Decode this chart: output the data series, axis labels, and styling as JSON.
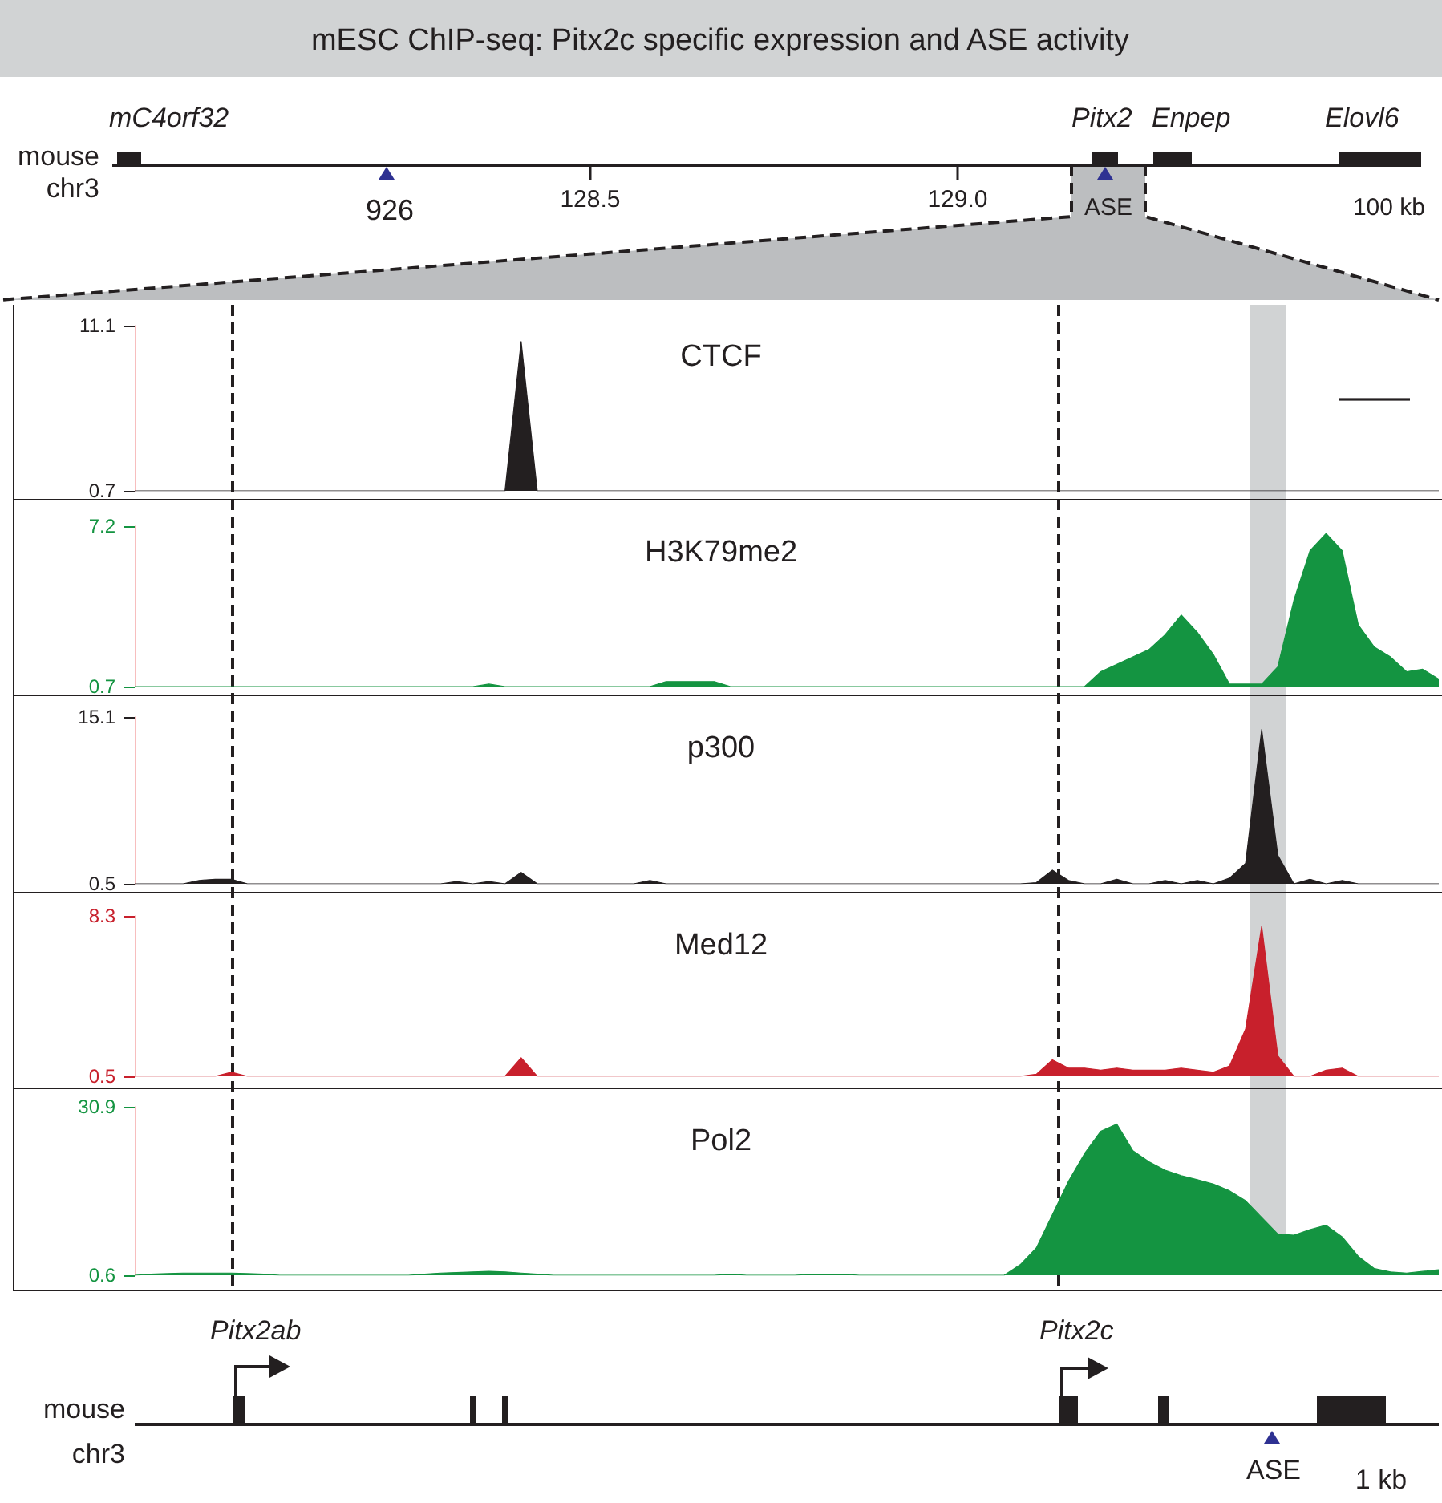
{
  "chart_data": [
    {
      "type": "other",
      "title": "mESC ChIP-seq: Pitx2c specific expression and ASE activity",
      "annotations": [
        "mouse",
        "chr3",
        "mC4orf32",
        "Pitx2",
        "Enpep",
        "Elovl6",
        "926",
        "128.5",
        "129.0",
        "ASE",
        "100 kb"
      ]
    },
    {
      "type": "area",
      "title": "CTCF",
      "color": "#231f20",
      "categories": [
        null,
        null,
        null,
        null,
        null,
        null,
        null,
        null,
        null,
        null,
        null,
        null,
        null,
        null,
        null,
        null,
        null,
        null,
        null,
        null,
        null,
        null,
        null,
        null,
        null,
        null,
        null,
        null,
        null,
        null,
        null,
        null,
        null,
        null,
        null,
        null,
        null,
        null,
        null,
        null,
        null,
        null,
        null,
        null,
        null,
        null,
        null,
        null,
        null,
        null,
        null,
        null,
        null,
        null,
        null,
        null,
        null,
        null,
        null,
        null,
        null,
        null,
        null,
        null,
        null,
        null,
        null,
        null,
        null,
        null,
        null,
        null,
        null,
        null,
        null,
        null,
        null,
        null,
        null,
        null,
        null,
        null
      ],
      "values": [
        0.7,
        0.7,
        0.7,
        0.7,
        0.7,
        0.7,
        0.7,
        0.7,
        0.7,
        0.7,
        0.7,
        0.7,
        0.7,
        0.7,
        0.7,
        0.7,
        0.7,
        0.7,
        0.7,
        0.7,
        0.7,
        0.7,
        0.7,
        0.7,
        10.1,
        0.7,
        0.7,
        0.7,
        0.7,
        0.7,
        0.7,
        0.7,
        0.7,
        0.7,
        0.7,
        0.7,
        0.7,
        0.7,
        0.7,
        0.7,
        0.7,
        0.7,
        0.7,
        0.7,
        0.7,
        0.7,
        0.7,
        0.7,
        0.7,
        0.7,
        0.7,
        0.7,
        0.7,
        0.7,
        0.7,
        0.7,
        0.7,
        0.7,
        0.7,
        0.7,
        0.7,
        0.7,
        0.7,
        0.7,
        0.7,
        0.7,
        0.7,
        0.7,
        0.7,
        0.7,
        0.7,
        0.7,
        0.7,
        0.7,
        0.7,
        0.7,
        0.7,
        0.7,
        0.7,
        0.7,
        0.7,
        0.7
      ],
      "ylim": [
        0.7,
        11.1
      ],
      "yticks": [
        0.7,
        11.1
      ],
      "tick_labels": "y"
    },
    {
      "type": "area",
      "title": "H3K79me2",
      "color": "#149441",
      "categories": [
        null,
        null,
        null,
        null,
        null,
        null,
        null,
        null,
        null,
        null,
        null,
        null,
        null,
        null,
        null,
        null,
        null,
        null,
        null,
        null,
        null,
        null,
        null,
        null,
        null,
        null,
        null,
        null,
        null,
        null,
        null,
        null,
        null,
        null,
        null,
        null,
        null,
        null,
        null,
        null,
        null,
        null,
        null,
        null,
        null,
        null,
        null,
        null,
        null,
        null,
        null,
        null,
        null,
        null,
        null,
        null,
        null,
        null,
        null,
        null,
        null,
        null,
        null,
        null,
        null,
        null,
        null,
        null,
        null,
        null,
        null,
        null,
        null,
        null,
        null,
        null,
        null,
        null,
        null,
        null,
        null,
        null
      ],
      "values": [
        0.7,
        0.7,
        0.7,
        0.7,
        0.7,
        0.7,
        0.7,
        0.7,
        0.7,
        0.7,
        0.7,
        0.7,
        0.7,
        0.7,
        0.7,
        0.7,
        0.7,
        0.7,
        0.7,
        0.7,
        0.7,
        0.7,
        0.8,
        0.7,
        0.7,
        0.7,
        0.7,
        0.7,
        0.7,
        0.7,
        0.7,
        0.7,
        0.7,
        0.9,
        0.9,
        0.9,
        0.9,
        0.7,
        0.7,
        0.7,
        0.7,
        0.7,
        0.7,
        0.7,
        0.7,
        0.7,
        0.7,
        0.7,
        0.7,
        0.7,
        0.7,
        0.7,
        0.7,
        0.7,
        0.7,
        0.7,
        0.7,
        0.7,
        0.7,
        0.7,
        1.3,
        1.6,
        1.9,
        2.2,
        2.8,
        3.6,
        2.9,
        2.0,
        0.8,
        0.8,
        0.8,
        1.5,
        4.2,
        6.2,
        6.9,
        6.2,
        3.2,
        2.3,
        1.9,
        1.3,
        1.4,
        1.0
      ],
      "ylim": [
        0.7,
        7.2
      ],
      "yticks": [
        0.7,
        7.2
      ],
      "tick_labels": "y"
    },
    {
      "type": "area",
      "title": "p300",
      "color": "#231f20",
      "categories": [
        null,
        null,
        null,
        null,
        null,
        null,
        null,
        null,
        null,
        null,
        null,
        null,
        null,
        null,
        null,
        null,
        null,
        null,
        null,
        null,
        null,
        null,
        null,
        null,
        null,
        null,
        null,
        null,
        null,
        null,
        null,
        null,
        null,
        null,
        null,
        null,
        null,
        null,
        null,
        null,
        null,
        null,
        null,
        null,
        null,
        null,
        null,
        null,
        null,
        null,
        null,
        null,
        null,
        null,
        null,
        null,
        null,
        null,
        null,
        null,
        null,
        null,
        null,
        null,
        null,
        null,
        null,
        null,
        null,
        null,
        null,
        null,
        null,
        null,
        null,
        null,
        null,
        null,
        null,
        null,
        null,
        null
      ],
      "values": [
        0.5,
        0.5,
        0.5,
        0.5,
        0.8,
        0.9,
        0.9,
        0.5,
        0.5,
        0.5,
        0.5,
        0.5,
        0.5,
        0.5,
        0.5,
        0.5,
        0.5,
        0.5,
        0.5,
        0.5,
        0.7,
        0.5,
        0.7,
        0.5,
        1.5,
        0.5,
        0.5,
        0.5,
        0.5,
        0.5,
        0.5,
        0.5,
        0.8,
        0.5,
        0.5,
        0.5,
        0.5,
        0.5,
        0.5,
        0.5,
        0.5,
        0.5,
        0.5,
        0.5,
        0.5,
        0.5,
        0.5,
        0.5,
        0.5,
        0.5,
        0.5,
        0.5,
        0.5,
        0.5,
        0.5,
        0.5,
        0.6,
        1.7,
        0.8,
        0.5,
        0.5,
        0.9,
        0.5,
        0.5,
        0.8,
        0.5,
        0.8,
        0.5,
        1.0,
        2.3,
        14,
        3.0,
        0.5,
        0.9,
        0.5,
        0.8,
        0.5,
        0.5,
        0.5,
        0.5,
        0.5,
        0.5
      ],
      "ylim": [
        0.5,
        15.1
      ],
      "yticks": [
        0.5,
        15.1
      ],
      "tick_labels": "y"
    },
    {
      "type": "area",
      "title": "Med12",
      "color": "#c8202c",
      "categories": [
        null,
        null,
        null,
        null,
        null,
        null,
        null,
        null,
        null,
        null,
        null,
        null,
        null,
        null,
        null,
        null,
        null,
        null,
        null,
        null,
        null,
        null,
        null,
        null,
        null,
        null,
        null,
        null,
        null,
        null,
        null,
        null,
        null,
        null,
        null,
        null,
        null,
        null,
        null,
        null,
        null,
        null,
        null,
        null,
        null,
        null,
        null,
        null,
        null,
        null,
        null,
        null,
        null,
        null,
        null,
        null,
        null,
        null,
        null,
        null,
        null,
        null,
        null,
        null,
        null,
        null,
        null,
        null,
        null,
        null,
        null,
        null,
        null,
        null,
        null,
        null,
        null,
        null,
        null,
        null,
        null,
        null
      ],
      "values": [
        0.5,
        0.5,
        0.5,
        0.5,
        0.5,
        0.5,
        0.7,
        0.5,
        0.5,
        0.5,
        0.5,
        0.5,
        0.5,
        0.5,
        0.5,
        0.5,
        0.5,
        0.5,
        0.5,
        0.5,
        0.5,
        0.5,
        0.5,
        0.5,
        1.4,
        0.5,
        0.5,
        0.5,
        0.5,
        0.5,
        0.5,
        0.5,
        0.5,
        0.5,
        0.5,
        0.5,
        0.5,
        0.5,
        0.5,
        0.5,
        0.5,
        0.5,
        0.5,
        0.5,
        0.5,
        0.5,
        0.5,
        0.5,
        0.5,
        0.5,
        0.5,
        0.5,
        0.5,
        0.5,
        0.5,
        0.5,
        0.6,
        1.3,
        0.9,
        0.9,
        0.8,
        0.9,
        0.8,
        0.8,
        0.8,
        0.9,
        0.8,
        0.7,
        1.0,
        2.8,
        7.8,
        1.5,
        0.5,
        0.5,
        0.8,
        0.9,
        0.5,
        0.5,
        0.5,
        0.5,
        0.5,
        0.5
      ],
      "ylim": [
        0.5,
        8.3
      ],
      "yticks": [
        0.5,
        8.3
      ],
      "tick_labels": "y"
    },
    {
      "type": "area",
      "title": "Pol2",
      "color": "#149441",
      "categories": [
        null,
        null,
        null,
        null,
        null,
        null,
        null,
        null,
        null,
        null,
        null,
        null,
        null,
        null,
        null,
        null,
        null,
        null,
        null,
        null,
        null,
        null,
        null,
        null,
        null,
        null,
        null,
        null,
        null,
        null,
        null,
        null,
        null,
        null,
        null,
        null,
        null,
        null,
        null,
        null,
        null,
        null,
        null,
        null,
        null,
        null,
        null,
        null,
        null,
        null,
        null,
        null,
        null,
        null,
        null,
        null,
        null,
        null,
        null,
        null,
        null,
        null,
        null,
        null,
        null,
        null,
        null,
        null,
        null,
        null,
        null,
        null,
        null,
        null,
        null,
        null,
        null,
        null,
        null,
        null,
        null,
        null
      ],
      "values": [
        0.6,
        0.8,
        0.9,
        1.0,
        1.0,
        1.0,
        1.0,
        0.9,
        0.8,
        0.6,
        0.6,
        0.6,
        0.6,
        0.6,
        0.6,
        0.6,
        0.6,
        0.6,
        0.8,
        1.0,
        1.1,
        1.2,
        1.3,
        1.2,
        1.0,
        0.8,
        0.6,
        0.6,
        0.6,
        0.6,
        0.6,
        0.6,
        0.6,
        0.6,
        0.6,
        0.6,
        0.6,
        0.8,
        0.6,
        0.6,
        0.6,
        0.6,
        0.8,
        0.8,
        0.8,
        0.6,
        0.6,
        0.6,
        0.6,
        0.6,
        0.6,
        0.6,
        0.6,
        0.6,
        0.6,
        2.5,
        5.5,
        11.5,
        17.5,
        22.5,
        26.5,
        27.8,
        23.0,
        21.0,
        19.5,
        18.5,
        17.8,
        17.0,
        15.8,
        14.0,
        11.0,
        8.0,
        7.8,
        8.8,
        9.6,
        7.5,
        4.0,
        1.8,
        1.2,
        1.0,
        1.3,
        1.6
      ],
      "ylim": [
        0.6,
        30.9
      ],
      "yticks": [
        0.6,
        30.9
      ],
      "tick_labels": "y"
    },
    {
      "type": "other",
      "annotations": [
        "Pitx2ab",
        "Pitx2c",
        "mouse",
        "chr3",
        "ASE",
        "1 kb"
      ]
    }
  ]
}
